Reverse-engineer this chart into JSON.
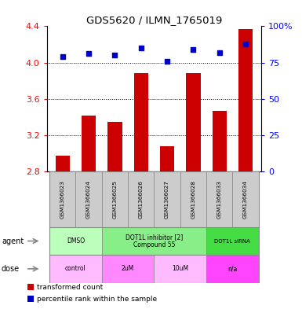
{
  "title": "GDS5620 / ILMN_1765019",
  "samples": [
    "GSM1366023",
    "GSM1366024",
    "GSM1366025",
    "GSM1366026",
    "GSM1366027",
    "GSM1366028",
    "GSM1366033",
    "GSM1366034"
  ],
  "bar_values": [
    2.97,
    3.42,
    3.35,
    3.88,
    3.08,
    3.88,
    3.47,
    4.37
  ],
  "dot_values": [
    79,
    81,
    80,
    85,
    76,
    84,
    82,
    88
  ],
  "bar_bottom": 2.8,
  "ylim_left": [
    2.8,
    4.4
  ],
  "ylim_right": [
    0,
    100
  ],
  "yticks_left": [
    2.8,
    3.2,
    3.6,
    4.0,
    4.4
  ],
  "yticks_right": [
    0,
    25,
    50,
    75,
    100
  ],
  "bar_color": "#cc0000",
  "dot_color": "#0000cc",
  "agent_groups": [
    {
      "text": "DMSO",
      "start": 0,
      "end": 1,
      "color": "#bbffbb"
    },
    {
      "text": "DOT1L inhibitor [2]\nCompound 55",
      "start": 2,
      "end": 5,
      "color": "#88ee88"
    },
    {
      "text": "DOT1L siRNA",
      "start": 6,
      "end": 7,
      "color": "#44dd44"
    }
  ],
  "dose_groups": [
    {
      "text": "control",
      "start": 0,
      "end": 1,
      "color": "#ffbbff"
    },
    {
      "text": "2uM",
      "start": 2,
      "end": 3,
      "color": "#ff88ff"
    },
    {
      "text": "10uM",
      "start": 4,
      "end": 5,
      "color": "#ffbbff"
    },
    {
      "text": "n/a",
      "start": 6,
      "end": 7,
      "color": "#ff44ff"
    }
  ],
  "legend_items": [
    {
      "label": "transformed count",
      "color": "#cc0000"
    },
    {
      "label": "percentile rank within the sample",
      "color": "#0000cc"
    }
  ],
  "sample_bg_color": "#cccccc",
  "grid_dotted_ticks": [
    3.2,
    3.6,
    4.0
  ],
  "background_color": "#ffffff"
}
